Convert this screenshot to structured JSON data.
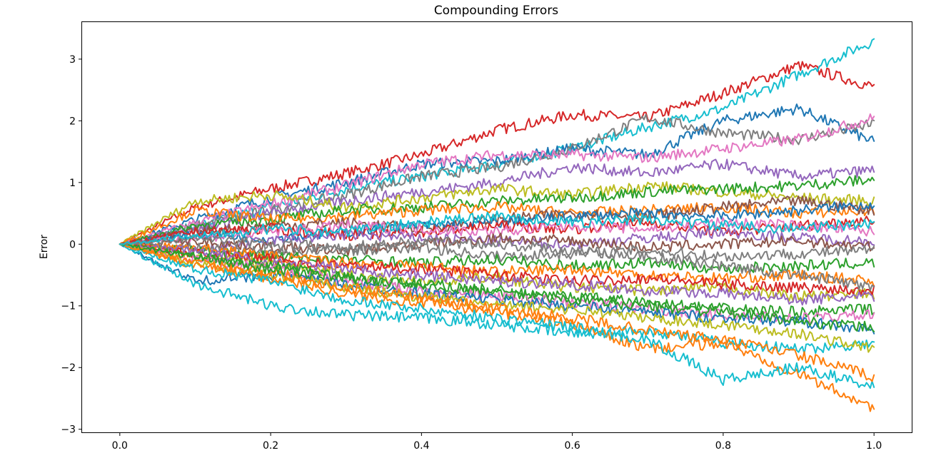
{
  "chart_data": {
    "type": "line",
    "title": "Compounding Errors",
    "xlabel": "",
    "ylabel": "Error",
    "xlim": [
      -0.05,
      1.05
    ],
    "ylim": [
      -3.05,
      3.6
    ],
    "xticks": [
      0.0,
      0.2,
      0.4,
      0.6,
      0.8,
      1.0
    ],
    "xtick_labels": [
      "0.0",
      "0.2",
      "0.4",
      "0.6",
      "0.8",
      "1.0"
    ],
    "yticks": [
      -3,
      -2,
      -1,
      0,
      1,
      2,
      3
    ],
    "ytick_labels": [
      "−3",
      "−2",
      "−1",
      "0",
      "1",
      "2",
      "3"
    ],
    "grid": false,
    "legend": "none",
    "palette": [
      "#1f77b4",
      "#ff7f0e",
      "#2ca02c",
      "#d62728",
      "#9467bd",
      "#8c564b",
      "#e377c2",
      "#7f7f7f",
      "#bcbd22",
      "#17becf"
    ],
    "x": [
      0.0,
      0.1,
      0.2,
      0.3,
      0.4,
      0.5,
      0.6,
      0.7,
      0.8,
      0.9,
      1.0
    ],
    "series": [
      {
        "color": "#d62728",
        "values": [
          0,
          0.6,
          0.9,
          1.15,
          1.45,
          1.85,
          2.1,
          2.05,
          2.45,
          2.9,
          2.55
        ]
      },
      {
        "color": "#17becf",
        "values": [
          0,
          0.3,
          0.6,
          0.9,
          1.1,
          1.3,
          1.55,
          1.9,
          2.2,
          2.75,
          3.3
        ]
      },
      {
        "color": "#1f77b4",
        "values": [
          0,
          0.4,
          0.75,
          1.0,
          1.3,
          1.35,
          1.55,
          1.45,
          2.0,
          2.2,
          1.65
        ]
      },
      {
        "color": "#7f7f7f",
        "values": [
          0,
          0.3,
          0.55,
          0.8,
          1.1,
          1.25,
          1.55,
          2.05,
          1.8,
          1.7,
          1.95
        ]
      },
      {
        "color": "#e377c2",
        "values": [
          0,
          0.35,
          0.65,
          0.95,
          1.3,
          1.45,
          1.45,
          1.4,
          1.55,
          1.7,
          2.05
        ]
      },
      {
        "color": "#9467bd",
        "values": [
          0,
          0.25,
          0.5,
          0.7,
          0.85,
          1.0,
          1.25,
          1.15,
          1.3,
          1.1,
          1.2
        ]
      },
      {
        "color": "#bcbd22",
        "values": [
          0,
          0.7,
          0.8,
          0.6,
          0.75,
          0.9,
          0.8,
          0.95,
          0.85,
          0.75,
          0.7
        ]
      },
      {
        "color": "#2ca02c",
        "values": [
          0,
          0.3,
          0.4,
          0.55,
          0.6,
          0.7,
          0.75,
          0.85,
          0.9,
          0.95,
          1.05
        ]
      },
      {
        "color": "#ff7f0e",
        "values": [
          0,
          0.55,
          0.4,
          0.45,
          0.55,
          0.6,
          0.5,
          0.55,
          0.6,
          0.5,
          0.55
        ]
      },
      {
        "color": "#8c564b",
        "values": [
          0,
          0.2,
          0.3,
          0.35,
          0.25,
          0.4,
          0.5,
          0.45,
          0.6,
          0.7,
          0.55
        ]
      },
      {
        "color": "#1f77b4",
        "values": [
          0,
          0.15,
          0.1,
          0.2,
          0.3,
          0.35,
          0.45,
          0.5,
          0.45,
          0.55,
          0.65
        ]
      },
      {
        "color": "#d62728",
        "values": [
          0,
          0.2,
          0.25,
          0.15,
          0.2,
          0.3,
          0.25,
          0.35,
          0.2,
          0.3,
          0.4
        ]
      },
      {
        "color": "#e377c2",
        "values": [
          0,
          0.1,
          0.2,
          0.3,
          0.25,
          0.2,
          0.3,
          0.25,
          0.35,
          0.3,
          0.2
        ]
      },
      {
        "color": "#9467bd",
        "values": [
          0,
          -0.1,
          0.05,
          0.15,
          0.1,
          0.05,
          0.0,
          0.1,
          0.2,
          0.1,
          0.05
        ]
      },
      {
        "color": "#8c564b",
        "values": [
          0,
          0.05,
          -0.05,
          -0.1,
          0.0,
          0.1,
          0.05,
          -0.05,
          0.0,
          0.05,
          -0.05
        ]
      },
      {
        "color": "#7f7f7f",
        "values": [
          0,
          -0.05,
          -0.15,
          -0.1,
          -0.05,
          -0.2,
          -0.15,
          -0.1,
          -0.2,
          -0.15,
          -0.1
        ]
      },
      {
        "color": "#2ca02c",
        "values": [
          0,
          -0.1,
          -0.2,
          -0.25,
          -0.3,
          -0.25,
          -0.35,
          -0.3,
          -0.4,
          -0.35,
          -0.3
        ]
      },
      {
        "color": "#ff7f0e",
        "values": [
          0,
          -0.05,
          -0.2,
          -0.3,
          -0.35,
          -0.45,
          -0.4,
          -0.5,
          -0.55,
          -0.5,
          -0.6
        ]
      },
      {
        "color": "#bcbd22",
        "values": [
          0,
          -0.2,
          -0.3,
          -0.5,
          -0.6,
          -0.55,
          -0.7,
          -0.75,
          -0.7,
          -0.85,
          -0.8
        ]
      },
      {
        "color": "#d62728",
        "values": [
          0,
          -0.15,
          -0.25,
          -0.35,
          -0.4,
          -0.5,
          -0.6,
          -0.55,
          -0.65,
          -0.7,
          -0.75
        ]
      },
      {
        "color": "#9467bd",
        "values": [
          0,
          -0.1,
          -0.3,
          -0.4,
          -0.5,
          -0.6,
          -0.65,
          -0.75,
          -0.8,
          -0.9,
          -0.85
        ]
      },
      {
        "color": "#2ca02c",
        "values": [
          0,
          -0.2,
          -0.35,
          -0.55,
          -0.7,
          -0.8,
          -0.85,
          -0.95,
          -1.05,
          -1.1,
          -1.05
        ]
      },
      {
        "color": "#e377c2",
        "values": [
          0,
          -0.25,
          -0.4,
          -0.6,
          -0.75,
          -0.85,
          -0.95,
          -1.05,
          -1.15,
          -1.2,
          -1.15
        ]
      },
      {
        "color": "#1f77b4",
        "values": [
          0,
          -0.6,
          -0.5,
          -0.65,
          -0.8,
          -0.9,
          -1.0,
          -1.1,
          -1.2,
          -1.25,
          -1.4
        ]
      },
      {
        "color": "#17becf",
        "values": [
          0,
          -0.65,
          -1.0,
          -1.15,
          -1.2,
          -1.3,
          -1.45,
          -1.4,
          -1.6,
          -1.7,
          -1.6
        ]
      },
      {
        "color": "#bcbd22",
        "values": [
          0,
          -0.3,
          -0.5,
          -0.7,
          -0.85,
          -1.0,
          -1.05,
          -1.2,
          -1.3,
          -1.45,
          -1.7
        ]
      },
      {
        "color": "#ff7f0e",
        "values": [
          0,
          -0.35,
          -0.55,
          -0.8,
          -0.95,
          -1.1,
          -1.3,
          -1.7,
          -1.6,
          -2.1,
          -2.65
        ]
      },
      {
        "color": "#17becf",
        "values": [
          0,
          -0.4,
          -0.6,
          -0.9,
          -1.05,
          -1.2,
          -1.35,
          -1.55,
          -2.2,
          -2.0,
          -2.3
        ]
      },
      {
        "color": "#ff7f0e",
        "values": [
          0,
          -0.3,
          -0.45,
          -0.7,
          -0.85,
          -1.05,
          -1.2,
          -1.4,
          -1.55,
          -1.8,
          -2.15
        ]
      },
      {
        "color": "#2ca02c",
        "values": [
          0,
          -0.2,
          -0.4,
          -0.55,
          -0.65,
          -0.75,
          -0.9,
          -1.0,
          -1.1,
          -1.25,
          -1.35
        ]
      },
      {
        "color": "#7f7f7f",
        "values": [
          0,
          0.1,
          0.0,
          -0.05,
          0.05,
          0.0,
          -0.1,
          -0.2,
          -0.35,
          -0.5,
          -0.7
        ]
      },
      {
        "color": "#17becf",
        "values": [
          0,
          0.15,
          0.25,
          0.2,
          0.35,
          0.45,
          0.35,
          0.4,
          0.3,
          0.25,
          0.35
        ]
      }
    ]
  }
}
